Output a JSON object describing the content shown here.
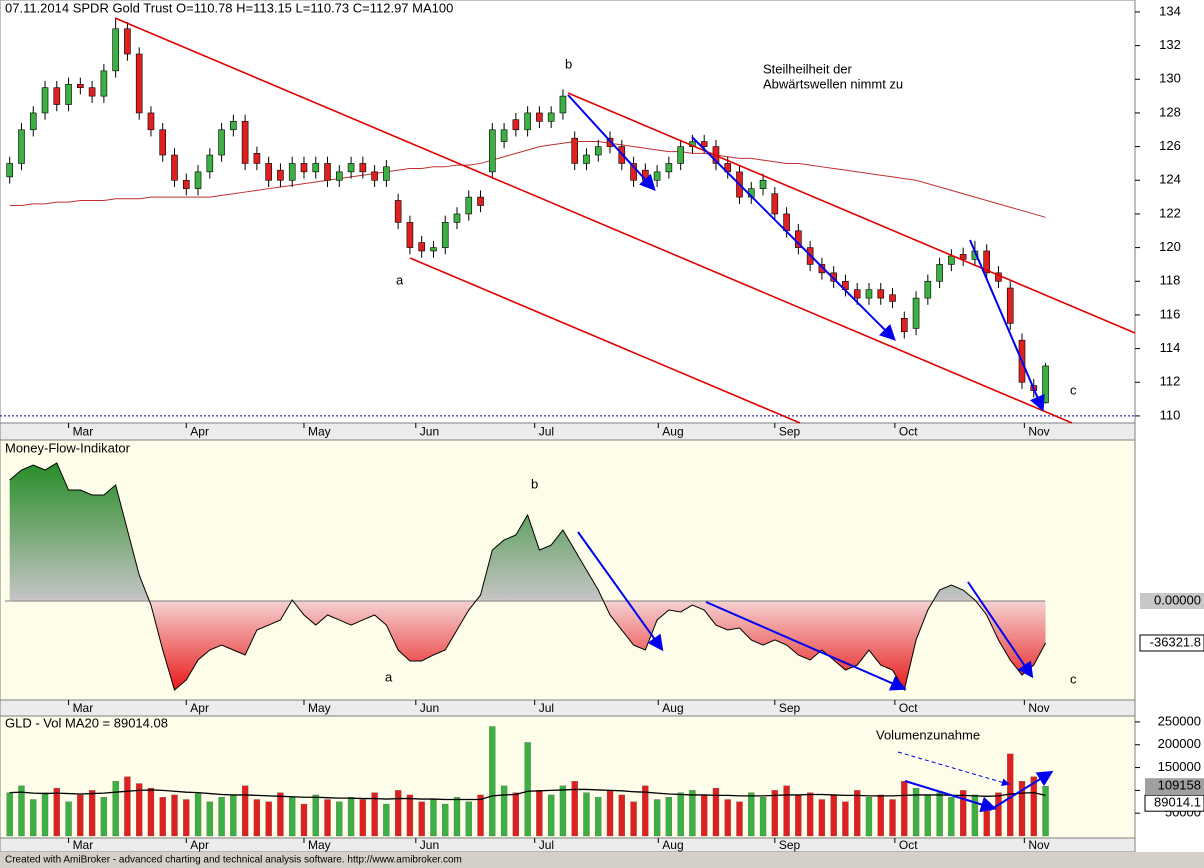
{
  "chart_data": [
    {
      "type": "candlestick",
      "title": "07.11.2014 SPDR Gold Trust  O=110.78  H=113.15  L=110.73  C=112.97    MA100",
      "xlim": [
        -0.4,
        95.6
      ],
      "xticks": [
        {
          "value": 5,
          "label": "Mar"
        },
        {
          "value": 15,
          "label": "Apr"
        },
        {
          "value": 25,
          "label": "May"
        },
        {
          "value": 34.5,
          "label": "Jun"
        },
        {
          "value": 44.6,
          "label": "Jul"
        },
        {
          "value": 55.1,
          "label": "Aug"
        },
        {
          "value": 65,
          "label": "Sep"
        },
        {
          "value": 75.2,
          "label": "Oct"
        },
        {
          "value": 86.2,
          "label": "Nov"
        }
      ],
      "ylim": [
        109.58,
        134.71
      ],
      "yticks": [
        110,
        112,
        114,
        116,
        118,
        120,
        122,
        124,
        126,
        128,
        130,
        132,
        134
      ],
      "up_color": "#3cb043",
      "down_color": "#e02020",
      "reference_line": 110,
      "open": [
        124.2,
        125,
        127,
        128,
        129.5,
        128.5,
        129.7,
        129.5,
        129,
        130.5,
        133,
        131.5,
        128,
        127,
        125.5,
        124,
        123.5,
        124.5,
        125.5,
        127,
        127.5,
        125.6,
        125,
        124.6,
        124,
        125,
        124.5,
        125,
        124,
        124.5,
        125,
        124.5,
        124,
        122.8,
        121.5,
        120.3,
        119.8,
        120,
        121.5,
        122,
        123,
        124.5,
        126.3,
        127.6,
        127,
        128,
        127.5,
        128,
        126.5,
        125,
        125.5,
        126.5,
        126,
        125,
        124.6,
        124,
        124.5,
        125,
        126,
        126.3,
        126,
        125,
        124.5,
        123,
        123.5,
        123.2,
        122,
        121,
        120,
        119,
        118.5,
        118,
        117.5,
        117,
        117.5,
        117.2,
        115.8,
        115.2,
        117,
        118,
        119,
        119.6,
        119.3,
        119.8,
        118.5,
        117.6,
        114.5,
        111.8,
        110.78
      ],
      "high": [
        125.4,
        127.4,
        128.4,
        129.9,
        129.9,
        130.1,
        130.1,
        129.9,
        130.9,
        133.6,
        133.4,
        131.9,
        128.4,
        127.4,
        125.9,
        124.4,
        124.9,
        125.9,
        127.4,
        127.9,
        127.9,
        126,
        125.4,
        125,
        125.4,
        125.4,
        125.4,
        125.4,
        124.9,
        125.4,
        125.4,
        124.9,
        125.2,
        123.2,
        121.9,
        120.7,
        120.4,
        121.9,
        122.4,
        123.4,
        123.4,
        127.4,
        127.4,
        128,
        128.4,
        128.4,
        128.4,
        129.4,
        126.9,
        125.9,
        126.4,
        126.9,
        126.4,
        125.4,
        125,
        124.9,
        125.4,
        126.4,
        126.7,
        126.7,
        126.4,
        125.4,
        124.9,
        123.9,
        124.4,
        123.6,
        122.4,
        121.4,
        120.4,
        119.4,
        118.9,
        118.4,
        117.9,
        117.9,
        117.9,
        117.6,
        116.2,
        117.4,
        118.4,
        119.4,
        119.9,
        120,
        120.4,
        120.2,
        118.9,
        118,
        114.9,
        112.2,
        113.15
      ],
      "low": [
        123.8,
        124.6,
        126.6,
        127.6,
        128.1,
        128.1,
        129.1,
        128.6,
        128.6,
        130.1,
        131.1,
        127.6,
        126.6,
        125.1,
        123.6,
        123.1,
        123.1,
        124.1,
        125.1,
        126.6,
        124.6,
        124.6,
        123.6,
        123.6,
        123.6,
        124.1,
        124.1,
        123.6,
        123.6,
        124.1,
        124.1,
        123.6,
        123.6,
        121.1,
        119.6,
        119.4,
        119.4,
        119.6,
        121.1,
        121.6,
        122.1,
        124.1,
        125.9,
        126.6,
        126.6,
        127.1,
        127.1,
        127.6,
        124.6,
        124.6,
        125.1,
        125.6,
        124.6,
        123.6,
        123.6,
        123.6,
        124.1,
        124.6,
        125.6,
        125.6,
        124.6,
        124.1,
        122.6,
        122.6,
        123.1,
        121.6,
        120.6,
        119.6,
        118.6,
        118.1,
        117.6,
        117.1,
        116.6,
        116.6,
        116.6,
        116.4,
        114.6,
        114.8,
        116.6,
        117.6,
        118.6,
        118.9,
        118.9,
        118.1,
        117.6,
        115.1,
        111.6,
        111.1,
        110.73
      ],
      "close": [
        125,
        127,
        128,
        129.5,
        128.5,
        129.7,
        129.5,
        129,
        130.5,
        133,
        131.5,
        128,
        127,
        125.5,
        124,
        123.5,
        124.5,
        125.5,
        127,
        127.5,
        125,
        125,
        124,
        124,
        125,
        124.5,
        125,
        124,
        124.5,
        125,
        124.5,
        124,
        124.8,
        121.5,
        120,
        119.8,
        120,
        121.5,
        122,
        123,
        122.5,
        127,
        127,
        127,
        128,
        127.5,
        128,
        129,
        125,
        125.5,
        126,
        126,
        125,
        124,
        124,
        124.5,
        125,
        126,
        126.3,
        126,
        125,
        124.5,
        123,
        123.5,
        124,
        122,
        121,
        120,
        119,
        118.5,
        118,
        117.5,
        117,
        117.5,
        117,
        116.8,
        115,
        117,
        118,
        119,
        119.5,
        119.3,
        119.8,
        118.5,
        118,
        115.5,
        112,
        111.5,
        112.97
      ],
      "ma": {
        "color": "#c03030",
        "values": [
          122.5,
          122.5,
          122.6,
          122.6,
          122.7,
          122.7,
          122.8,
          122.8,
          122.8,
          122.9,
          122.9,
          122.9,
          123,
          123,
          123,
          123,
          123,
          123,
          123.1,
          123.2,
          123.3,
          123.4,
          123.5,
          123.6,
          123.7,
          123.8,
          123.9,
          124,
          124.1,
          124.2,
          124.3,
          124.4,
          124.5,
          124.6,
          124.7,
          124.7,
          124.8,
          124.8,
          124.9,
          124.9,
          125,
          125.2,
          125.4,
          125.6,
          125.8,
          126,
          126.1,
          126.2,
          126.3,
          126.3,
          126.3,
          126.2,
          126.1,
          126,
          125.9,
          125.8,
          125.7,
          125.7,
          125.6,
          125.6,
          125.5,
          125.4,
          125.3,
          125.3,
          125.2,
          125.1,
          125,
          125,
          124.9,
          124.8,
          124.7,
          124.6,
          124.5,
          124.4,
          124.3,
          124.2,
          124.1,
          124,
          123.8,
          123.6,
          123.4,
          123.2,
          123,
          122.8,
          122.6,
          122.4,
          122.2,
          122,
          121.8
        ]
      },
      "annotations": {
        "a": "a",
        "b": "b",
        "c": "c",
        "note_1": "Steilheilheit der",
        "note_2": "Abwärtswellen nimmt zu"
      }
    },
    {
      "type": "area",
      "title": "Money-Flow-Indikator",
      "ylim": [
        -85635,
        139265
      ],
      "yticks": [
        {
          "value": 0,
          "label": "0.00000"
        }
      ],
      "values": [
        104700,
        113300,
        117600,
        113300,
        119400,
        96000,
        96000,
        91700,
        91700,
        100300,
        61400,
        22500,
        -3500,
        -42400,
        -77000,
        -68300,
        -51000,
        -42400,
        -38100,
        -42400,
        -46700,
        -25100,
        -20800,
        -16400,
        900,
        -12100,
        -20800,
        -12100,
        -16400,
        -20800,
        -16400,
        -12100,
        -20800,
        -42400,
        -51900,
        -51900,
        -46700,
        -42400,
        -25100,
        -7800,
        5200,
        44100,
        52800,
        57100,
        74400,
        44100,
        48400,
        61400,
        44100,
        26800,
        9500,
        -12100,
        -25100,
        -38100,
        -42400,
        -16400,
        -7800,
        -9500,
        -3500,
        -7800,
        -20800,
        -25100,
        -23400,
        -33700,
        -38100,
        -33700,
        -38100,
        -46700,
        -51000,
        -42400,
        -51000,
        -59700,
        -55400,
        -42400,
        -55400,
        -59700,
        -77000,
        -33700,
        -7800,
        9500,
        13800,
        9500,
        900,
        -12100,
        -33700,
        -51000,
        -64000,
        -55400,
        -36321.8
      ],
      "annotations": {
        "a": "a",
        "b": "b",
        "c": "c"
      }
    },
    {
      "type": "bar",
      "title": "GLD - Vol MA20 = 89014.08",
      "ylim": [
        0,
        263000
      ],
      "yticks": [
        50000,
        100000,
        150000,
        200000,
        250000
      ],
      "values": [
        95000,
        110000,
        80000,
        95000,
        105000,
        75000,
        90000,
        100000,
        85000,
        120000,
        130000,
        115000,
        105000,
        85000,
        90000,
        80000,
        95000,
        75000,
        85000,
        90000,
        110000,
        80000,
        75000,
        95000,
        85000,
        70000,
        90000,
        80000,
        75000,
        85000,
        80000,
        95000,
        70000,
        100000,
        90000,
        75000,
        80000,
        70000,
        85000,
        75000,
        90000,
        240000,
        110000,
        95000,
        205000,
        100000,
        90000,
        110000,
        120000,
        95000,
        85000,
        100000,
        90000,
        75000,
        110000,
        80000,
        85000,
        95000,
        100000,
        90000,
        105000,
        80000,
        75000,
        95000,
        85000,
        100000,
        110000,
        90000,
        95000,
        80000,
        90000,
        75000,
        100000,
        85000,
        90000,
        80000,
        120000,
        105000,
        90000,
        95000,
        85000,
        100000,
        90000,
        75000,
        95000,
        180000,
        120000,
        130000,
        109158
      ],
      "ma": {
        "color": "#000000",
        "values": [
          95000,
          96000,
          94000,
          93000,
          94000,
          93000,
          92000,
          93000,
          94000,
          96000,
          98000,
          100000,
          101000,
          100000,
          98000,
          96000,
          95000,
          93000,
          91000,
          90000,
          90000,
          89000,
          88000,
          87000,
          86000,
          85000,
          85000,
          84000,
          83000,
          83000,
          82000,
          82000,
          81000,
          82000,
          82000,
          81000,
          81000,
          80000,
          80000,
          80000,
          80000,
          88000,
          90000,
          91000,
          98000,
          99000,
          100000,
          101000,
          102000,
          102000,
          101000,
          100000,
          99000,
          97000,
          96000,
          94000,
          92000,
          91000,
          90000,
          90000,
          89000,
          89000,
          88000,
          88000,
          88000,
          89000,
          90000,
          90000,
          91000,
          91000,
          90000,
          89000,
          89000,
          88000,
          88000,
          88000,
          89000,
          90000,
          90000,
          90000,
          89000,
          89000,
          88000,
          87000,
          88000,
          92000,
          94000,
          95000,
          89014.08
        ],
        "value_labels": {
          "88": "89014.1"
        }
      },
      "annotations": {
        "note": "Volumenzunahme"
      }
    }
  ],
  "footer": "Created with AmiBroker - advanced charting and technical analysis software. http://www.amibroker.com"
}
